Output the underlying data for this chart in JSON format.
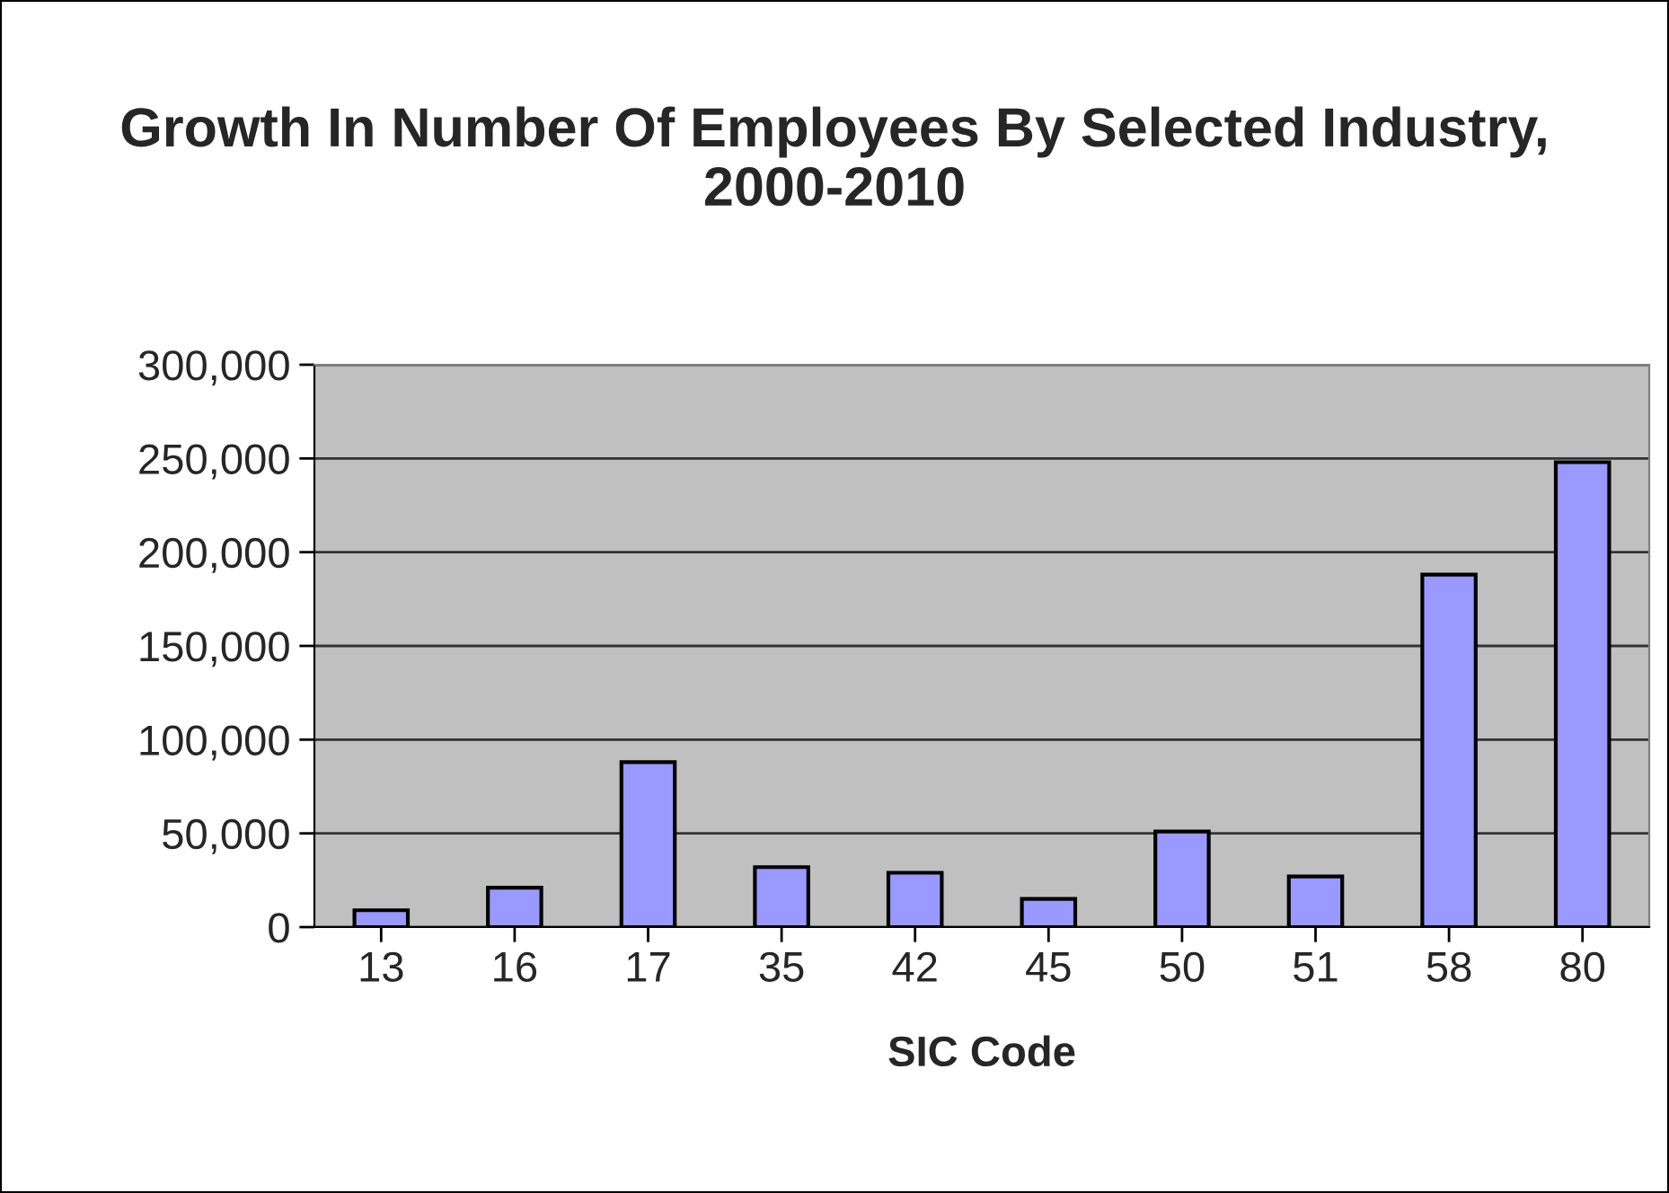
{
  "chart_data": {
    "type": "bar",
    "title": "Growth In Number Of Employees By Selected Industry, 2000-2010",
    "xlabel": "SIC Code",
    "categories": [
      "13",
      "16",
      "17",
      "35",
      "42",
      "45",
      "50",
      "51",
      "58",
      "80"
    ],
    "values": [
      9000,
      21000,
      88000,
      32000,
      29000,
      15000,
      51000,
      27000,
      188000,
      248000
    ],
    "color": "#9999ff",
    "ylim": [
      0,
      300000
    ],
    "yticks": [
      {
        "value": 0,
        "label": "0"
      },
      {
        "value": 50000,
        "label": "50,000"
      },
      {
        "value": 100000,
        "label": "100,000"
      },
      {
        "value": 150000,
        "label": "150,000"
      },
      {
        "value": 200000,
        "label": "200,000"
      },
      {
        "value": 250000,
        "label": "250,000"
      },
      {
        "value": 300000,
        "label": "300,000"
      }
    ],
    "grid": "y",
    "legend": false
  }
}
